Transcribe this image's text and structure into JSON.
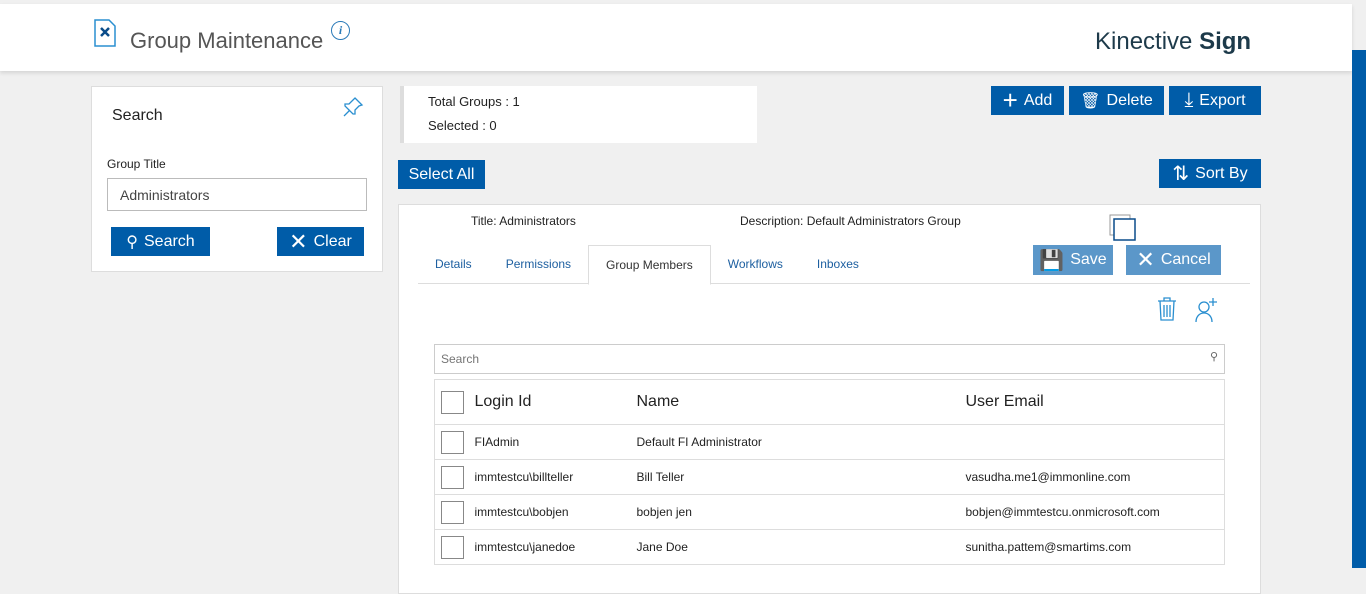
{
  "header": {
    "title": "Group Maintenance",
    "brand_light": "Kinective",
    "brand_bold": "Sign",
    "info": "i"
  },
  "search_panel": {
    "title": "Search",
    "field_label": "Group Title",
    "field_value": "Administrators",
    "search_label": "Search",
    "clear_label": "Clear"
  },
  "summary": {
    "total": "Total Groups : 1",
    "selected": "Selected : 0"
  },
  "toolbar": {
    "add": "Add",
    "delete": "Delete",
    "export": "Export",
    "select_all": "Select All",
    "sort_by": "Sort By"
  },
  "group": {
    "title_label": "Title:",
    "title": "Administrators",
    "description_label": "Description:",
    "description": "Default Administrators Group",
    "save": "Save",
    "cancel": "Cancel"
  },
  "tabs": [
    {
      "label": "Details"
    },
    {
      "label": "Permissions"
    },
    {
      "label": "Group Members",
      "active": true
    },
    {
      "label": "Workflows"
    },
    {
      "label": "Inboxes"
    }
  ],
  "members": {
    "search_placeholder": "Search",
    "columns": [
      "Login Id",
      "Name",
      "User Email"
    ],
    "rows": [
      {
        "login": "FIAdmin",
        "name": "Default FI Administrator",
        "email": ""
      },
      {
        "login": "immtestcu\\billteller",
        "name": "Bill Teller",
        "email": "vasudha.me1@immonline.com"
      },
      {
        "login": "immtestcu\\bobjen",
        "name": "bobjen jen",
        "email": "bobjen@immtestcu.onmicrosoft.com"
      },
      {
        "login": "immtestcu\\janedoe",
        "name": "Jane Doe",
        "email": "sunitha.pattem@smartims.com"
      }
    ]
  },
  "colors": {
    "primary": "#005ca8",
    "disabled": "#5b97c9"
  }
}
